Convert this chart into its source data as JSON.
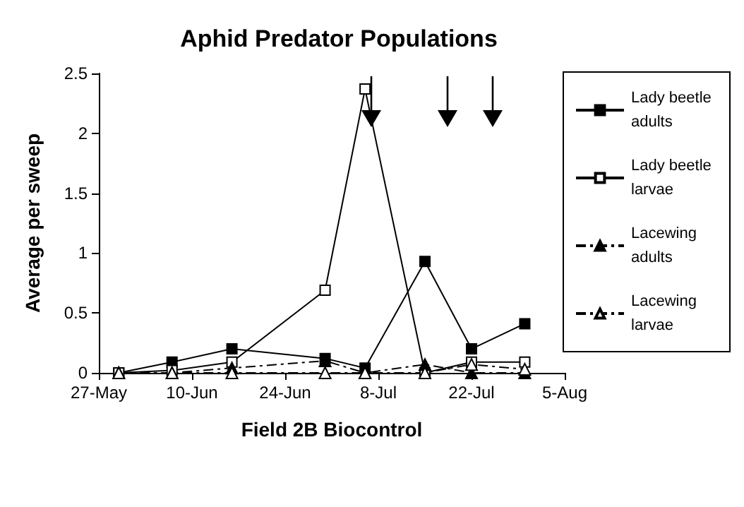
{
  "chart_data": {
    "type": "line",
    "title": "Aphid Predator Populations",
    "xlabel": "Field 2B Biocontrol",
    "ylabel": "Average per sweep",
    "x": [
      "--05-30",
      "--06-07",
      "--06-16",
      "--06-30",
      "--07-06",
      "--07-15",
      "--07-22",
      "--07-30"
    ],
    "series": [
      {
        "name": "Lady beetle adults",
        "color": "#000000",
        "marker": "square",
        "line_style": "solid",
        "values": [
          0,
          0.09,
          0.2,
          0.12,
          0.04,
          0.93,
          0.2,
          0.41
        ]
      },
      {
        "name": "Lady beetle larvae",
        "color": "#000000",
        "marker": "square",
        "line_style": "solid",
        "values": [
          0,
          0.02,
          0.09,
          0.69,
          2.37,
          0,
          0.09,
          0.09
        ]
      },
      {
        "name": "Lacewing adults",
        "color": "#000000",
        "marker": "triangle",
        "line_style": "dashed",
        "values": [
          0,
          0,
          0.04,
          0.1,
          0,
          0.07,
          0,
          0
        ]
      },
      {
        "name": "Lacewing larvae",
        "color": "#000000",
        "marker": "triangle",
        "line_style": "dashed",
        "values": [
          0,
          0,
          0,
          0,
          0,
          0,
          0.07,
          0.03
        ]
      }
    ],
    "xlim": [
      "--05-27",
      "--08-05"
    ],
    "xticks": [
      {
        "value": "--05-27",
        "label": "27-May"
      },
      {
        "value": "--06-10",
        "label": "10-Jun"
      },
      {
        "value": "--06-24",
        "label": "24-Jun"
      },
      {
        "value": "--07-08",
        "label": "8-Jul"
      },
      {
        "value": "--07-22",
        "label": "22-Jul"
      },
      {
        "value": "--08-05",
        "label": "5-Aug"
      }
    ],
    "ylim": [
      0,
      2.5
    ],
    "yticks": [
      0,
      0.5,
      1,
      1.5,
      2,
      2.5
    ],
    "grid": false,
    "legend": "right"
  }
}
